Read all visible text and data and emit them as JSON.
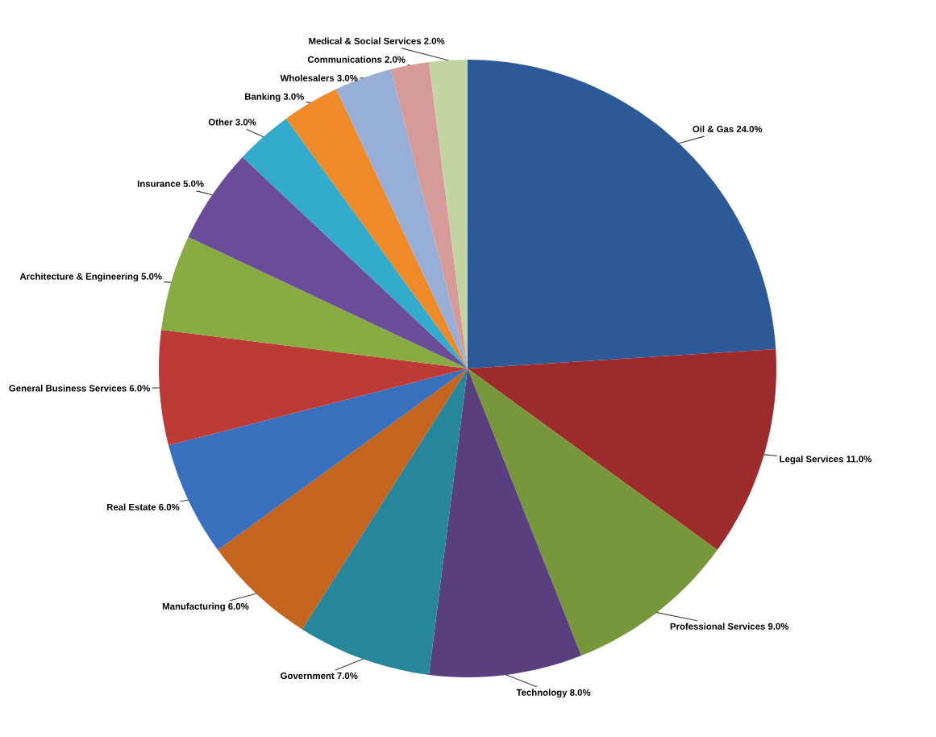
{
  "chart_data": {
    "type": "pie",
    "legend": false,
    "categories": [
      "Oil & Gas",
      "Legal Services",
      "Professional Services",
      "Technology",
      "Government",
      "Manufacturing",
      "Real Estate",
      "General Business Services",
      "Architecture & Engineering",
      "Insurance",
      "Other",
      "Banking",
      "Wholesalers",
      "Communications",
      "Medical & Social Services"
    ],
    "values": [
      24,
      11,
      9,
      8,
      7,
      6,
      6,
      6,
      5,
      5,
      3,
      3,
      3,
      2,
      2
    ],
    "value_labels": [
      "24.0%",
      "11.0%",
      "9.0%",
      "8.0%",
      "7.0%",
      "6.0%",
      "6.0%",
      "6.0%",
      "5.0%",
      "5.0%",
      "3.0%",
      "3.0%",
      "3.0%",
      "2.0%",
      "2.0%"
    ],
    "colors": [
      "#2c5a98",
      "#9e2b2b",
      "#76973a",
      "#5a3f7e",
      "#26869c",
      "#c4641e",
      "#3870bd",
      "#bd3a36",
      "#86ac42",
      "#6b4c98",
      "#33abcd",
      "#ee8a28",
      "#97aed6",
      "#d69a99",
      "#c2d5a0"
    ]
  }
}
